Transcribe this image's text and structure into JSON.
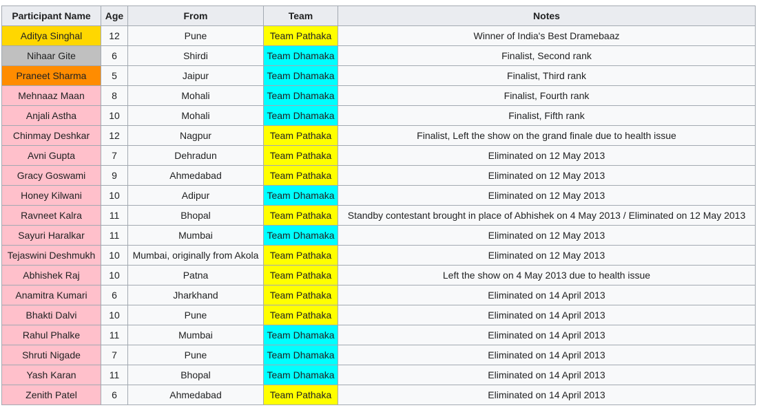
{
  "colors": {
    "gold": "#FFD700",
    "silver": "#C0C0C0",
    "orange": "#FF8C00",
    "pink": "#FFC0CB",
    "yellow": "#FFFF00",
    "cyan": "#00FFFF",
    "header_bg": "#eaecf0",
    "cell_bg": "#f8f9fa",
    "border": "#a2a9b1"
  },
  "table": {
    "headers": [
      "Participant Name",
      "Age",
      "From",
      "Team",
      "Notes"
    ]
  },
  "rows": [
    {
      "name": "Aditya Singhal",
      "age": "12",
      "from": "Pune",
      "team": "Team Pathaka",
      "notes": "Winner of India's Best Dramebaaz",
      "name_color": "gold",
      "team_color": "yellow"
    },
    {
      "name": "Nihaar Gite",
      "age": "6",
      "from": "Shirdi",
      "team": "Team Dhamaka",
      "notes": "Finalist, Second rank",
      "name_color": "silver",
      "team_color": "cyan"
    },
    {
      "name": "Praneet Sharma",
      "age": "5",
      "from": "Jaipur",
      "team": "Team Dhamaka",
      "notes": "Finalist, Third rank",
      "name_color": "orange",
      "team_color": "cyan"
    },
    {
      "name": "Mehnaaz Maan",
      "age": "8",
      "from": "Mohali",
      "team": "Team Dhamaka",
      "notes": "Finalist, Fourth rank",
      "name_color": "pink",
      "team_color": "cyan"
    },
    {
      "name": "Anjali Astha",
      "age": "10",
      "from": "Mohali",
      "team": "Team Dhamaka",
      "notes": "Finalist, Fifth rank",
      "name_color": "pink",
      "team_color": "cyan"
    },
    {
      "name": "Chinmay Deshkar",
      "age": "12",
      "from": "Nagpur",
      "team": "Team Pathaka",
      "notes": "Finalist, Left the show on the grand finale due to health issue",
      "name_color": "pink",
      "team_color": "yellow"
    },
    {
      "name": "Avni Gupta",
      "age": "7",
      "from": "Dehradun",
      "team": "Team Pathaka",
      "notes": "Eliminated on 12 May 2013",
      "name_color": "pink",
      "team_color": "yellow"
    },
    {
      "name": "Gracy Goswami",
      "age": "9",
      "from": "Ahmedabad",
      "team": "Team Pathaka",
      "notes": "Eliminated on 12 May 2013",
      "name_color": "pink",
      "team_color": "yellow"
    },
    {
      "name": "Honey Kilwani",
      "age": "10",
      "from": "Adipur",
      "team": "Team Dhamaka",
      "notes": "Eliminated on 12 May 2013",
      "name_color": "pink",
      "team_color": "cyan"
    },
    {
      "name": "Ravneet Kalra",
      "age": "11",
      "from": "Bhopal",
      "team": "Team Pathaka",
      "notes": "Standby contestant brought in place of Abhishek on 4 May 2013 / Eliminated on 12 May 2013",
      "name_color": "pink",
      "team_color": "yellow"
    },
    {
      "name": "Sayuri Haralkar",
      "age": "11",
      "from": "Mumbai",
      "team": "Team Dhamaka",
      "notes": "Eliminated on 12 May 2013",
      "name_color": "pink",
      "team_color": "cyan"
    },
    {
      "name": "Tejaswini Deshmukh",
      "age": "10",
      "from": "Mumbai, originally from Akola",
      "team": "Team Pathaka",
      "notes": "Eliminated on 12 May 2013",
      "name_color": "pink",
      "team_color": "yellow"
    },
    {
      "name": "Abhishek Raj",
      "age": "10",
      "from": "Patna",
      "team": "Team Pathaka",
      "notes": "Left the show on 4 May 2013 due to health issue",
      "name_color": "pink",
      "team_color": "yellow"
    },
    {
      "name": "Anamitra Kumari",
      "age": "6",
      "from": "Jharkhand",
      "team": "Team Pathaka",
      "notes": "Eliminated on 14 April 2013",
      "name_color": "pink",
      "team_color": "yellow"
    },
    {
      "name": "Bhakti Dalvi",
      "age": "10",
      "from": "Pune",
      "team": "Team Pathaka",
      "notes": "Eliminated on 14 April 2013",
      "name_color": "pink",
      "team_color": "yellow"
    },
    {
      "name": "Rahul Phalke",
      "age": "11",
      "from": "Mumbai",
      "team": "Team Dhamaka",
      "notes": "Eliminated on 14 April 2013",
      "name_color": "pink",
      "team_color": "cyan"
    },
    {
      "name": "Shruti Nigade",
      "age": "7",
      "from": "Pune",
      "team": "Team Dhamaka",
      "notes": "Eliminated on 14 April 2013",
      "name_color": "pink",
      "team_color": "cyan"
    },
    {
      "name": "Yash Karan",
      "age": "11",
      "from": "Bhopal",
      "team": "Team Dhamaka",
      "notes": "Eliminated on 14 April 2013",
      "name_color": "pink",
      "team_color": "cyan"
    },
    {
      "name": "Zenith Patel",
      "age": "6",
      "from": "Ahmedabad",
      "team": "Team Pathaka",
      "notes": "Eliminated on 14 April 2013",
      "name_color": "pink",
      "team_color": "yellow"
    }
  ]
}
